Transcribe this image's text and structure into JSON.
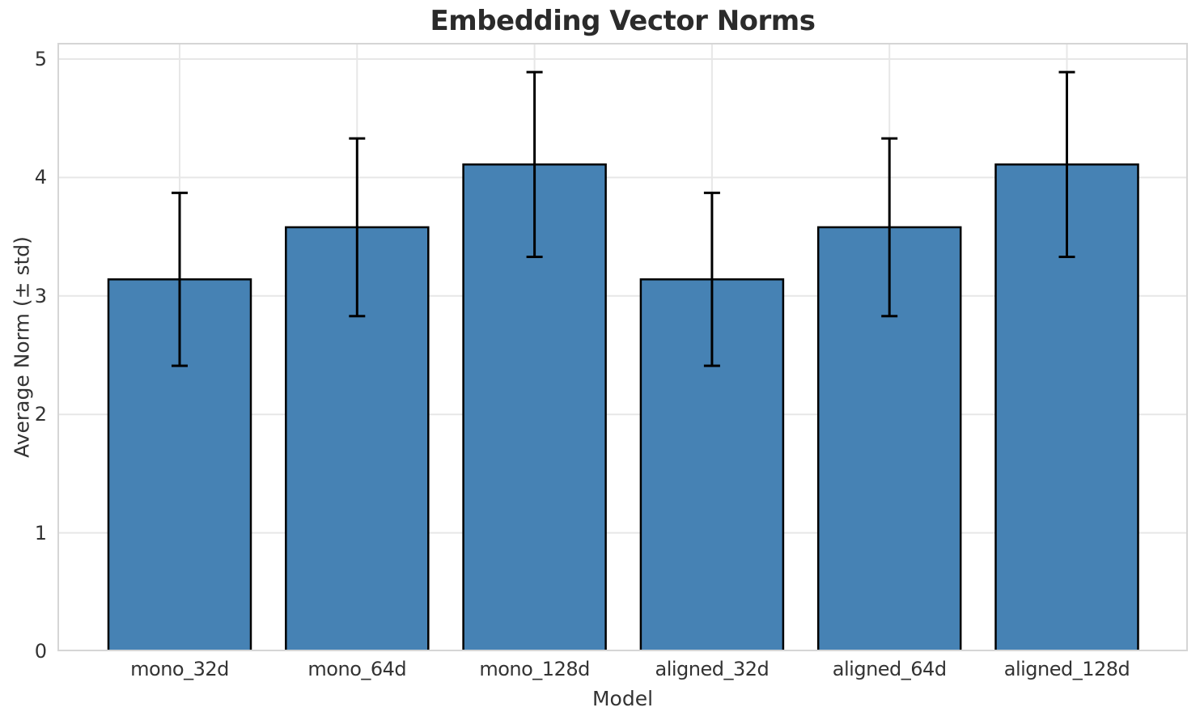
{
  "chart_data": {
    "type": "bar",
    "title": "Embedding Vector Norms",
    "xlabel": "Model",
    "ylabel": "Average Norm (± std)",
    "categories": [
      "mono_32d",
      "mono_64d",
      "mono_128d",
      "aligned_32d",
      "aligned_64d",
      "aligned_128d"
    ],
    "series": [
      {
        "name": "Average Norm",
        "values": [
          3.14,
          3.58,
          4.11,
          3.14,
          3.58,
          4.11
        ],
        "std": [
          0.73,
          0.75,
          0.78,
          0.73,
          0.75,
          0.78
        ]
      }
    ],
    "yticks": [
      0,
      1,
      2,
      3,
      4,
      5
    ],
    "ylim": [
      0,
      5.14
    ],
    "grid": true,
    "legend": false,
    "error_bars": true,
    "colors": {
      "bar_fill": "#4682B4",
      "bar_edge": "#000000",
      "error_bar": "#000000",
      "grid_line": "#e7e7e7",
      "spine": "#d5d5d5",
      "tick_text": "#333333",
      "label_text": "#333333",
      "title_text": "#2b2b2b",
      "background": "#ffffff"
    }
  }
}
